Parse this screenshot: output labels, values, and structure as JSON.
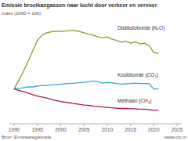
{
  "chart_data": {
    "type": "line",
    "title": "Emissie broeikasgassen naar lucht door verkeer en vervoer",
    "y_label": "index (1990 = 100)",
    "source": "Bron: Emissieregistratie",
    "credit": "www.clo.nl",
    "x": [
      1990,
      1991,
      1992,
      1993,
      1994,
      1995,
      1996,
      1997,
      1998,
      1999,
      2000,
      2001,
      2002,
      2003,
      2004,
      2005,
      2006,
      2007,
      2008,
      2009,
      2010,
      2011,
      2012,
      2013,
      2014,
      2015,
      2016,
      2017,
      2018,
      2019,
      2020,
      2021
    ],
    "series": [
      {
        "name": "Distikstofoxide (N₂O)",
        "color": "#8c9a2c",
        "values": [
          100,
          125,
          150,
          180,
          210,
          240,
          255,
          262,
          265,
          266,
          266,
          267,
          268,
          268,
          266,
          262,
          258,
          255,
          250,
          248,
          250,
          244,
          240,
          235,
          238,
          232,
          236,
          230,
          232,
          225,
          205,
          203
        ]
      },
      {
        "name": "Kooldioxide (CO₂)",
        "color": "#36a9e1",
        "values": [
          100,
          102,
          104,
          106,
          106,
          108,
          110,
          110,
          112,
          113,
          114,
          115,
          116,
          117,
          118,
          120,
          121,
          123,
          121,
          117,
          119,
          118,
          116,
          114,
          115,
          116,
          117,
          116,
          116,
          115,
          100,
          101
        ]
      },
      {
        "name": "Methaan (CH₄)",
        "color": "#a3195b",
        "values": [
          100,
          96,
          92,
          88,
          84,
          80,
          77,
          74,
          70,
          67,
          64,
          62,
          60,
          58,
          56,
          54,
          53,
          51,
          50,
          48,
          47,
          46,
          45,
          44,
          44,
          43,
          43,
          42,
          42,
          41,
          38,
          39
        ]
      }
    ],
    "xlim": [
      1989,
      2026
    ],
    "xticks": [
      1990,
      1995,
      2000,
      2005,
      2010,
      2015,
      2020,
      2025
    ],
    "ylim": [
      0,
      300
    ],
    "tick_labels": "x",
    "grid": false,
    "legend": "right"
  }
}
